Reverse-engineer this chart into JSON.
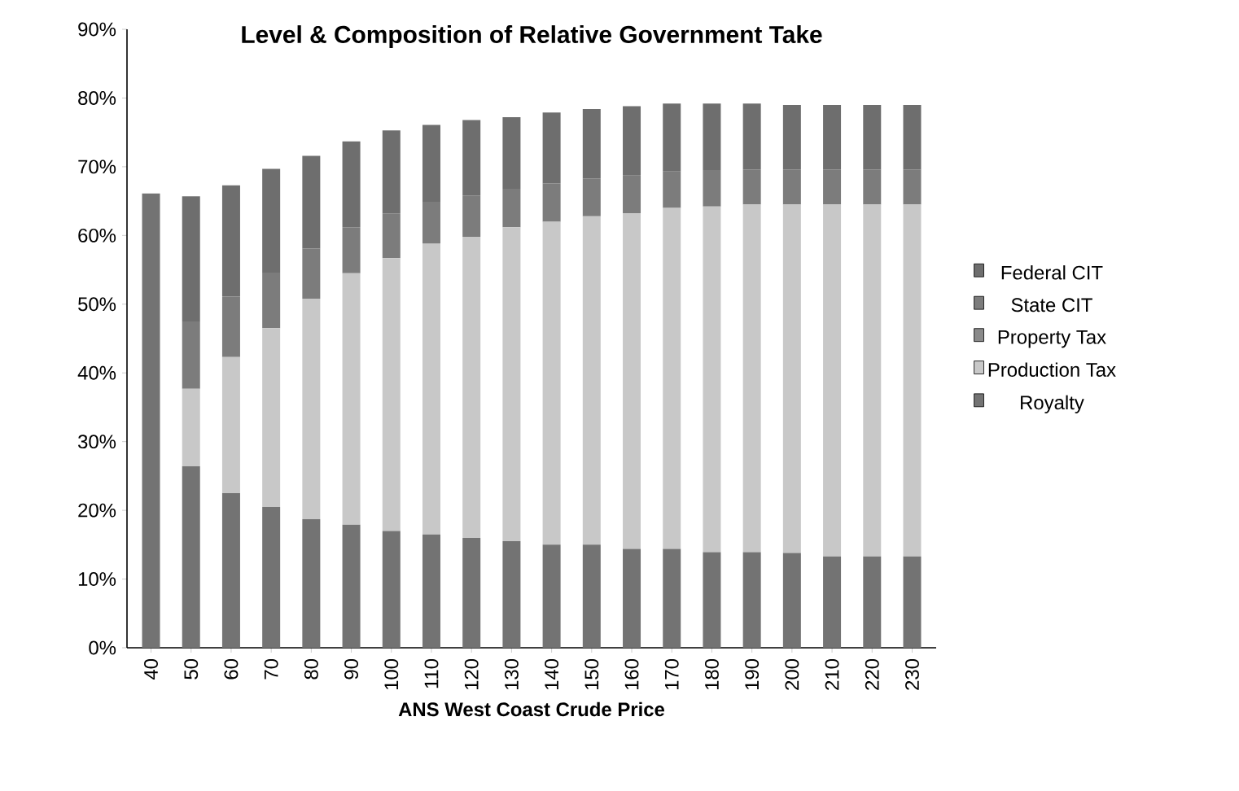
{
  "chart_data": {
    "type": "bar",
    "stacked": true,
    "title": "Level & Composition of Relative Government Take",
    "xlabel": "ANS West Coast Crude Price",
    "categories": [
      "40",
      "50",
      "60",
      "70",
      "80",
      "90",
      "100",
      "110",
      "120",
      "130",
      "140",
      "150",
      "160",
      "170",
      "180",
      "190",
      "200",
      "210",
      "220",
      "230"
    ],
    "series": [
      {
        "name": "Royalty",
        "color": "#737373",
        "values": [
          66.1,
          26.4,
          22.5,
          20.5,
          18.7,
          17.9,
          17.0,
          16.5,
          16.0,
          15.5,
          15.0,
          15.0,
          14.4,
          14.4,
          13.9,
          13.9,
          13.8,
          13.3,
          13.3,
          13.3
        ]
      },
      {
        "name": "Production Tax",
        "color": "#c8c8c8",
        "values": [
          0,
          11.3,
          19.8,
          26.0,
          32.1,
          36.6,
          39.7,
          42.3,
          43.8,
          45.7,
          47.0,
          47.8,
          48.8,
          49.6,
          50.3,
          50.6,
          50.7,
          51.2,
          51.2,
          51.2
        ]
      },
      {
        "name": "Property Tax",
        "color": "#8a8a8a",
        "values": [
          0,
          0,
          0,
          0,
          0,
          0,
          0,
          0,
          0,
          0,
          0,
          0,
          0,
          0,
          0,
          0,
          0,
          0,
          0,
          0
        ]
      },
      {
        "name": "State CIT",
        "color": "#7c7c7c",
        "values": [
          0,
          9.8,
          8.8,
          8.1,
          7.3,
          6.7,
          6.5,
          6.1,
          6.0,
          5.6,
          5.6,
          5.5,
          5.5,
          5.3,
          5.3,
          5.1,
          5.1,
          5.1,
          5.1,
          5.1
        ]
      },
      {
        "name": "Federal CIT",
        "color": "#6e6e6e",
        "values": [
          0,
          18.2,
          16.2,
          15.1,
          13.5,
          12.5,
          12.1,
          11.2,
          11.0,
          10.4,
          10.3,
          10.1,
          10.1,
          9.9,
          9.7,
          9.6,
          9.4,
          9.4,
          9.4,
          9.4
        ]
      }
    ],
    "ylim": [
      0,
      90
    ],
    "yticks": [
      {
        "value": 0,
        "label": "0%"
      },
      {
        "value": 10,
        "label": "10%"
      },
      {
        "value": 20,
        "label": "20%"
      },
      {
        "value": 30,
        "label": "30%"
      },
      {
        "value": 40,
        "label": "40%"
      },
      {
        "value": 50,
        "label": "50%"
      },
      {
        "value": 60,
        "label": "60%"
      },
      {
        "value": 70,
        "label": "70%"
      },
      {
        "value": 80,
        "label": "80%"
      },
      {
        "value": 90,
        "label": "90%"
      }
    ],
    "legend": "right"
  }
}
